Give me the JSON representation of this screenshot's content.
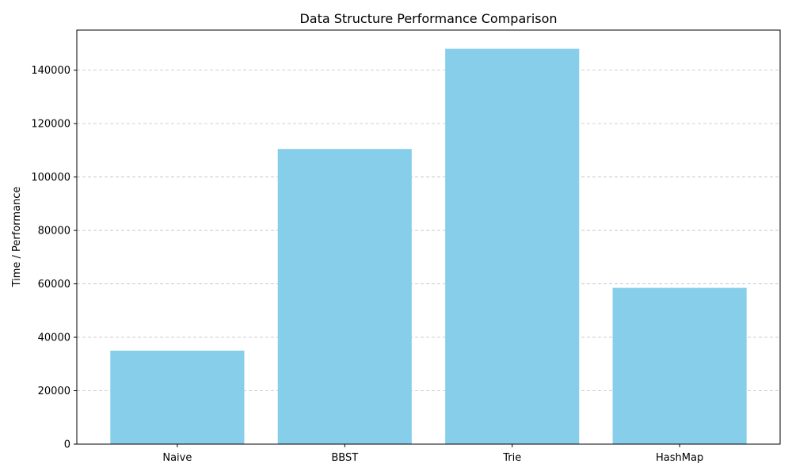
{
  "chart_data": {
    "type": "bar",
    "title": "Data Structure Performance Comparison",
    "xlabel": "",
    "ylabel": "Time / Performance",
    "categories": [
      "Naive",
      "BBST",
      "Trie",
      "HashMap"
    ],
    "values": [
      35000,
      110500,
      148000,
      58500
    ],
    "ylim": [
      0,
      155000
    ],
    "yticks": [
      0,
      20000,
      40000,
      60000,
      80000,
      100000,
      120000,
      140000
    ],
    "grid": "y-dashed",
    "bar_color": "#87ceeb",
    "grid_color": "#c0c0c0",
    "axis_color": "#000000"
  }
}
